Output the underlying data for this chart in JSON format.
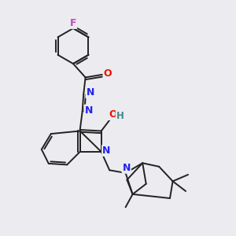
{
  "bg_color": "#ebebf0",
  "bond_color": "#222222",
  "bond_width": 1.4,
  "atom_colors": {
    "F": "#cc44cc",
    "O": "#ee1100",
    "N": "#2222ee",
    "H": "#448888",
    "C": "#222222"
  },
  "font_size": 8.5
}
